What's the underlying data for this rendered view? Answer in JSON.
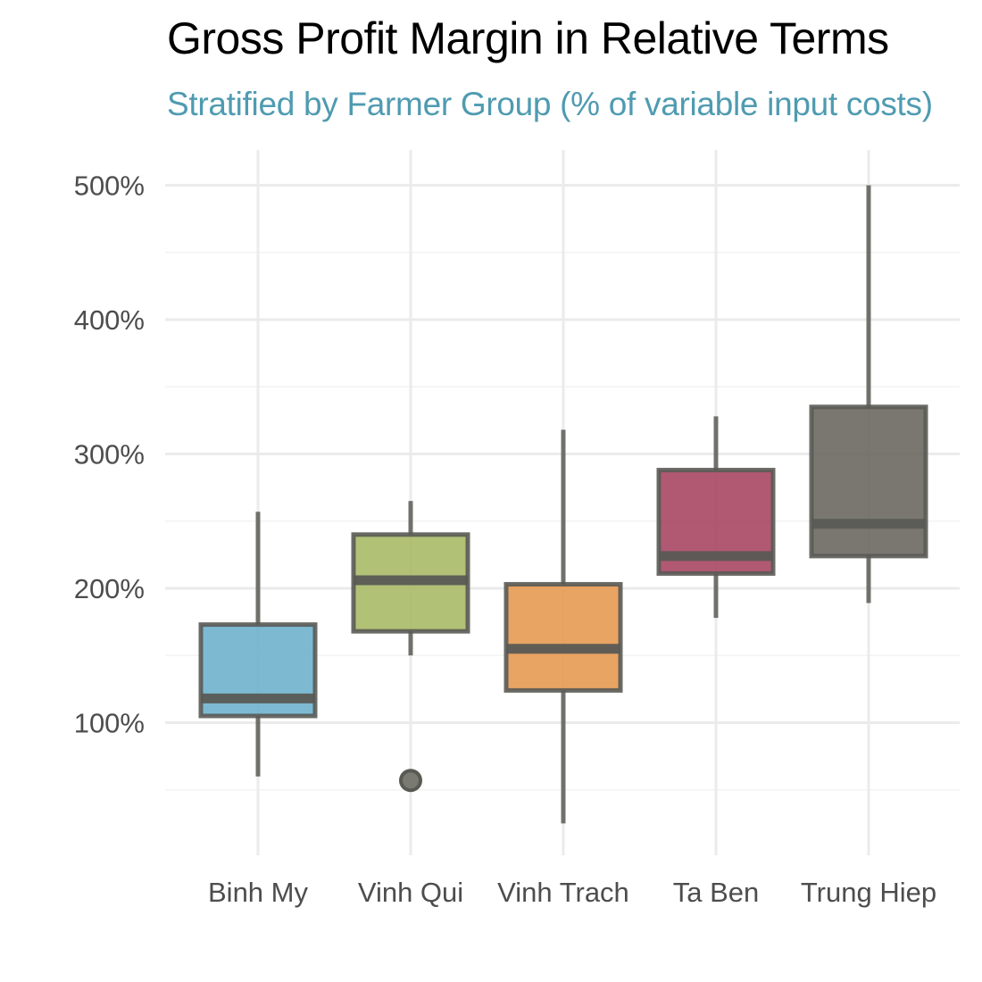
{
  "chart_data": {
    "type": "boxplot",
    "title": "Gross Profit Margin in Relative Terms",
    "subtitle": "Stratified by Farmer Group (% of variable input costs)",
    "xlabel": "",
    "ylabel": "",
    "ylim": [
      0,
      525
    ],
    "y_ticks": [
      100,
      200,
      300,
      400,
      500
    ],
    "y_tick_labels": [
      "100%",
      "200%",
      "300%",
      "400%",
      "500%"
    ],
    "categories": [
      "Binh My",
      "Vinh Qui",
      "Vinh Trach",
      "Ta Ben",
      "Trung Hiep"
    ],
    "boxes": [
      {
        "name": "Binh My",
        "min": 60,
        "q1": 105,
        "median": 118,
        "q3": 173,
        "max": 257,
        "outliers": [],
        "color": "#6fb3cd"
      },
      {
        "name": "Vinh Qui",
        "min": 150,
        "q1": 168,
        "median": 206,
        "q3": 240,
        "max": 265,
        "outliers": [
          57
        ],
        "color": "#a9bb68"
      },
      {
        "name": "Vinh Trach",
        "min": 25,
        "q1": 124,
        "median": 155,
        "q3": 203,
        "max": 318,
        "outliers": [],
        "color": "#e59a51"
      },
      {
        "name": "Ta Ben",
        "min": 178,
        "q1": 211,
        "median": 224,
        "q3": 288,
        "max": 328,
        "outliers": [],
        "color": "#a84764"
      },
      {
        "name": "Trung Hiep",
        "min": 189,
        "q1": 224,
        "median": 248,
        "q3": 335,
        "max": 500,
        "outliers": [],
        "color": "#6b6862"
      }
    ],
    "grid": true,
    "legend": "none"
  },
  "colors": {
    "subtitle": "#4f9bb1",
    "box_outline": "#5a5a55",
    "grid_major": "#ebebeb",
    "grid_minor": "#f3f3f3"
  }
}
